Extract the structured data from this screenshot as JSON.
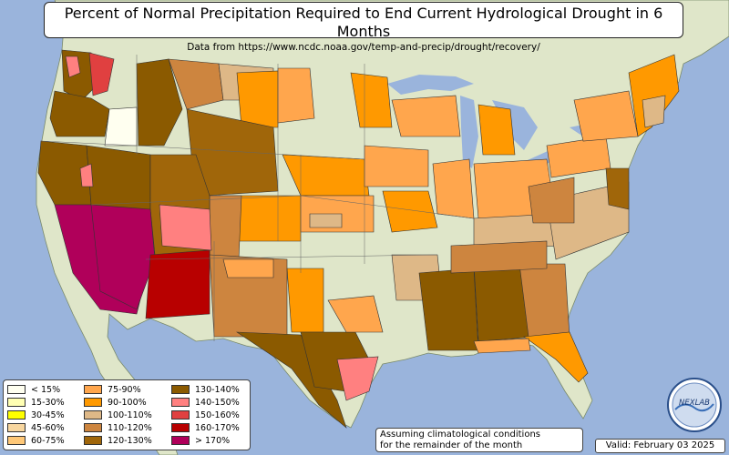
{
  "title": "Percent of Normal Precipitation Required to End Current Hydrological Drought in 6 Months",
  "subtitle": "Data from https://www.ncdc.noaa.gov/temp-and-precip/drought/recovery/",
  "note_lines": [
    "Assuming climatological conditions",
    "for the remainder of the month"
  ],
  "valid": "Valid: February 03 2025",
  "logo_text": "NEXLAB",
  "colors": {
    "ocean": "#9ab4dc",
    "land": "#dfe6c9",
    "border": "#8a8a8a"
  },
  "legend": [
    {
      "label": "< 15%",
      "color": "#fffff0"
    },
    {
      "label": "15-30%",
      "color": "#ffffb3"
    },
    {
      "label": "30-45%",
      "color": "#ffff00"
    },
    {
      "label": "45-60%",
      "color": "#f8d7a0"
    },
    {
      "label": "60-75%",
      "color": "#ffc878"
    },
    {
      "label": "75-90%",
      "color": "#ffa64d"
    },
    {
      "label": "90-100%",
      "color": "#ff9900"
    },
    {
      "label": "100-110%",
      "color": "#deb887"
    },
    {
      "label": "110-120%",
      "color": "#cd853f"
    },
    {
      "label": "120-130%",
      "color": "#a0660a"
    },
    {
      "label": "130-140%",
      "color": "#8b5a00"
    },
    {
      "label": "140-150%",
      "color": "#ff8080"
    },
    {
      "label": "150-160%",
      "color": "#e04040"
    },
    {
      "label": "160-170%",
      "color": "#b80000"
    },
    {
      "label": "> 170%",
      "color": "#b0005a"
    }
  ]
}
